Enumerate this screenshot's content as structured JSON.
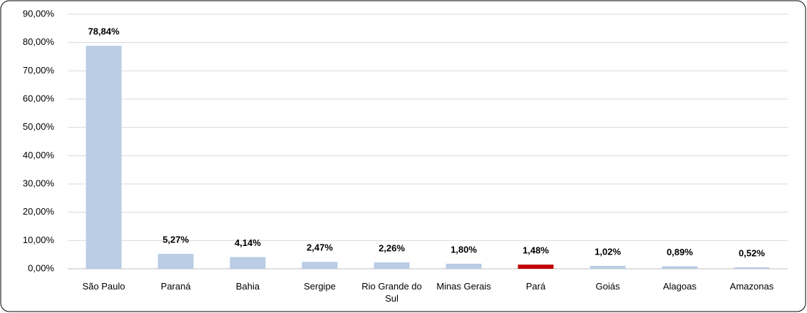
{
  "chart_data": {
    "type": "bar",
    "categories": [
      "São Paulo",
      "Paraná",
      "Bahia",
      "Sergipe",
      "Rio Grande do Sul",
      "Minas Gerais",
      "Pará",
      "Goiás",
      "Alagoas",
      "Amazonas"
    ],
    "values": [
      78.84,
      5.27,
      4.14,
      2.47,
      2.26,
      1.8,
      1.48,
      1.02,
      0.89,
      0.52
    ],
    "value_labels": [
      "78,84%",
      "5,27%",
      "4,14%",
      "2,47%",
      "2,26%",
      "1,80%",
      "1,48%",
      "1,02%",
      "0,89%",
      "0,52%"
    ],
    "colors": [
      "#b9cde5",
      "#b9cde5",
      "#b9cde5",
      "#b9cde5",
      "#b9cde5",
      "#b9cde5",
      "#c00000",
      "#b9cde5",
      "#b9cde5",
      "#b9cde5"
    ],
    "ylim": [
      0,
      90
    ],
    "yticks": [
      {
        "value": 0,
        "label": "0,00%"
      },
      {
        "value": 10,
        "label": "10,00%"
      },
      {
        "value": 20,
        "label": "20,00%"
      },
      {
        "value": 30,
        "label": "30,00%"
      },
      {
        "value": 40,
        "label": "40,00%"
      },
      {
        "value": 50,
        "label": "50,00%"
      },
      {
        "value": 60,
        "label": "60,00%"
      },
      {
        "value": 70,
        "label": "70,00%"
      },
      {
        "value": 80,
        "label": "80,00%"
      },
      {
        "value": 90,
        "label": "90,00%"
      }
    ],
    "grid": true
  }
}
